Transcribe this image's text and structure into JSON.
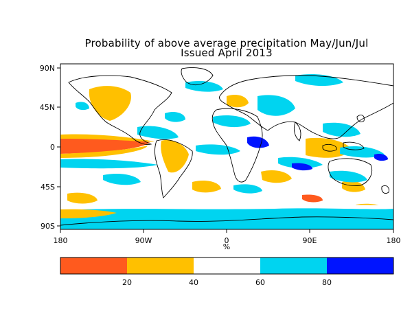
{
  "title_line1": "Probability of above average precipitation May/Jun/Jul",
  "title_line2": "Issued April 2013",
  "y_ticks": [
    "90N",
    "45N",
    "0",
    "45S",
    "90S"
  ],
  "x_ticks": [
    "180",
    "90W",
    "0",
    "90E",
    "180"
  ],
  "unit_label": "%",
  "colorbar": {
    "colors": [
      "#ff5a1e",
      "#ffc000",
      "#ffffff",
      "#00d4f0",
      "#0014ff"
    ],
    "labels": [
      "20",
      "40",
      "60",
      "80"
    ]
  }
}
